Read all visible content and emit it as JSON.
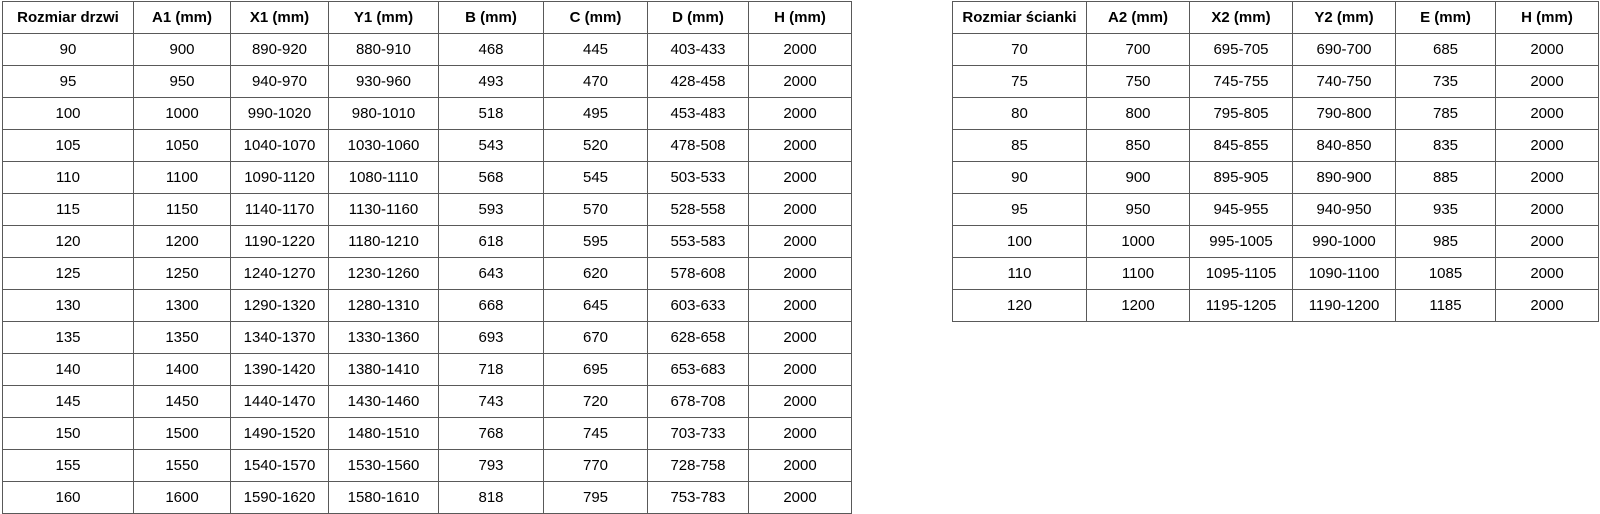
{
  "page": {
    "background_color": "#ffffff",
    "border_color": "#595959",
    "text_color": "#000000"
  },
  "door_table": {
    "headers": [
      "Rozmiar drzwi",
      "A1 (mm)",
      "X1 (mm)",
      "Y1 (mm)",
      "B (mm)",
      "C (mm)",
      "D (mm)",
      "H (mm)"
    ],
    "rows": [
      [
        "90",
        "900",
        "890-920",
        "880-910",
        "468",
        "445",
        "403-433",
        "2000"
      ],
      [
        "95",
        "950",
        "940-970",
        "930-960",
        "493",
        "470",
        "428-458",
        "2000"
      ],
      [
        "100",
        "1000",
        "990-1020",
        "980-1010",
        "518",
        "495",
        "453-483",
        "2000"
      ],
      [
        "105",
        "1050",
        "1040-1070",
        "1030-1060",
        "543",
        "520",
        "478-508",
        "2000"
      ],
      [
        "110",
        "1100",
        "1090-1120",
        "1080-1110",
        "568",
        "545",
        "503-533",
        "2000"
      ],
      [
        "115",
        "1150",
        "1140-1170",
        "1130-1160",
        "593",
        "570",
        "528-558",
        "2000"
      ],
      [
        "120",
        "1200",
        "1190-1220",
        "1180-1210",
        "618",
        "595",
        "553-583",
        "2000"
      ],
      [
        "125",
        "1250",
        "1240-1270",
        "1230-1260",
        "643",
        "620",
        "578-608",
        "2000"
      ],
      [
        "130",
        "1300",
        "1290-1320",
        "1280-1310",
        "668",
        "645",
        "603-633",
        "2000"
      ],
      [
        "135",
        "1350",
        "1340-1370",
        "1330-1360",
        "693",
        "670",
        "628-658",
        "2000"
      ],
      [
        "140",
        "1400",
        "1390-1420",
        "1380-1410",
        "718",
        "695",
        "653-683",
        "2000"
      ],
      [
        "145",
        "1450",
        "1440-1470",
        "1430-1460",
        "743",
        "720",
        "678-708",
        "2000"
      ],
      [
        "150",
        "1500",
        "1490-1520",
        "1480-1510",
        "768",
        "745",
        "703-733",
        "2000"
      ],
      [
        "155",
        "1550",
        "1540-1570",
        "1530-1560",
        "793",
        "770",
        "728-758",
        "2000"
      ],
      [
        "160",
        "1600",
        "1590-1620",
        "1580-1610",
        "818",
        "795",
        "753-783",
        "2000"
      ]
    ]
  },
  "wall_table": {
    "headers": [
      "Rozmiar ścianki",
      "A2 (mm)",
      "X2 (mm)",
      "Y2 (mm)",
      "E (mm)",
      "H (mm)"
    ],
    "rows": [
      [
        "70",
        "700",
        "695-705",
        "690-700",
        "685",
        "2000"
      ],
      [
        "75",
        "750",
        "745-755",
        "740-750",
        "735",
        "2000"
      ],
      [
        "80",
        "800",
        "795-805",
        "790-800",
        "785",
        "2000"
      ],
      [
        "85",
        "850",
        "845-855",
        "840-850",
        "835",
        "2000"
      ],
      [
        "90",
        "900",
        "895-905",
        "890-900",
        "885",
        "2000"
      ],
      [
        "95",
        "950",
        "945-955",
        "940-950",
        "935",
        "2000"
      ],
      [
        "100",
        "1000",
        "995-1005",
        "990-1000",
        "985",
        "2000"
      ],
      [
        "110",
        "1100",
        "1095-1105",
        "1090-1100",
        "1085",
        "2000"
      ],
      [
        "120",
        "1200",
        "1195-1205",
        "1190-1200",
        "1185",
        "2000"
      ]
    ]
  }
}
